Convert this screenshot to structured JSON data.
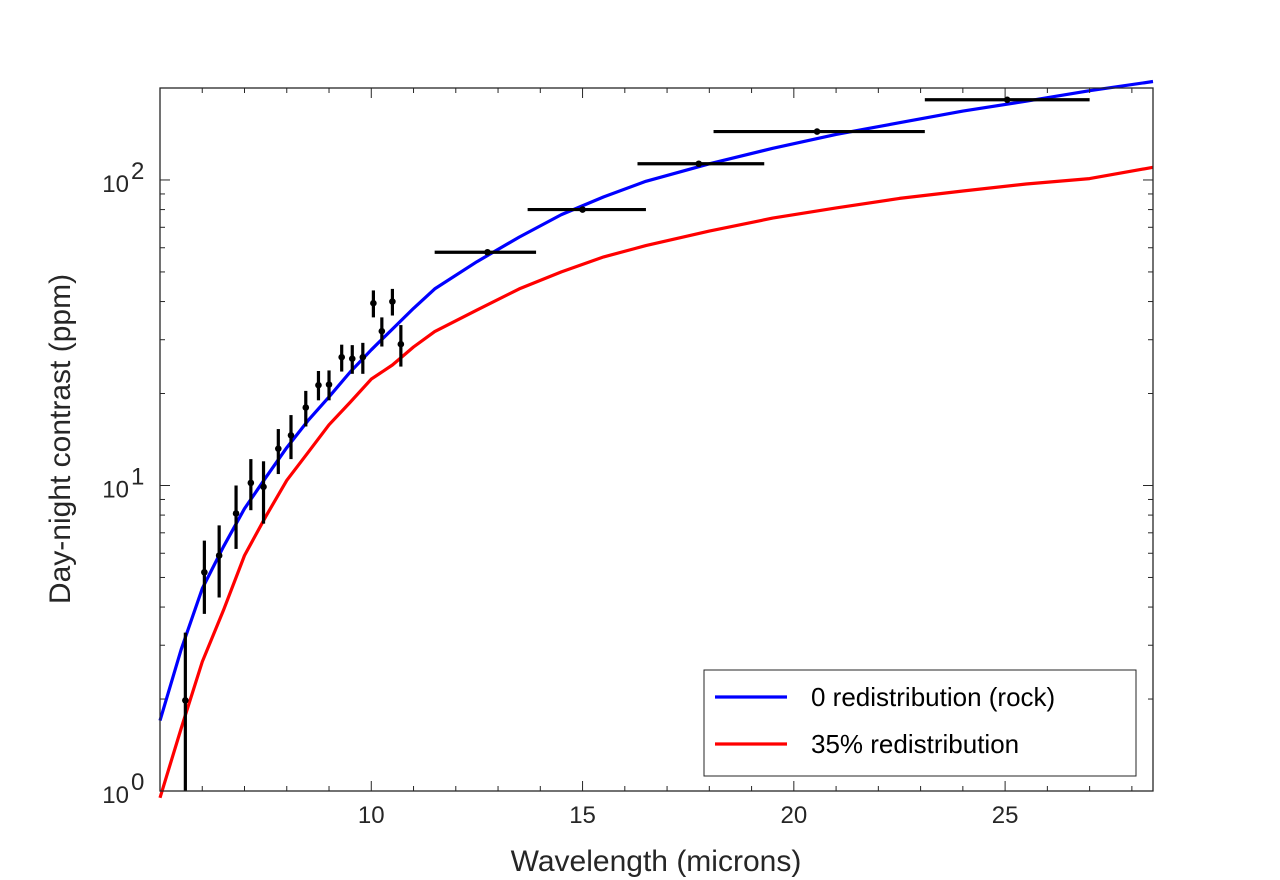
{
  "chart_data": {
    "type": "line",
    "title": "",
    "xlabel": "Wavelength (microns)",
    "ylabel": "Day-night contrast (ppm)",
    "xlim": [
      5,
      28.5
    ],
    "ylim": [
      1,
      200
    ],
    "yscale": "log",
    "grid": false,
    "legend_position": "bottom-right",
    "x_ticks": [
      {
        "value": 10,
        "label": "10"
      },
      {
        "value": 15,
        "label": "15"
      },
      {
        "value": 20,
        "label": "20"
      },
      {
        "value": 25,
        "label": "25"
      }
    ],
    "y_ticks": [
      {
        "value": 1,
        "base": "10",
        "exp": "0"
      },
      {
        "value": 10,
        "base": "10",
        "exp": "1"
      },
      {
        "value": 100,
        "base": "10",
        "exp": "2"
      }
    ],
    "series": [
      {
        "name": "0 redistribution (rock)",
        "color": "#0000ff",
        "x": [
          5.0,
          5.5,
          6.0,
          6.5,
          7.0,
          7.5,
          8.0,
          8.5,
          9.0,
          9.5,
          10.0,
          10.5,
          11.0,
          11.5,
          12.5,
          13.5,
          14.5,
          15.5,
          16.5,
          18.0,
          19.5,
          21.0,
          22.5,
          24.0,
          25.5,
          27.0,
          28.5
        ],
        "y": [
          1.7,
          2.9,
          4.6,
          6.3,
          8.4,
          10.6,
          13.3,
          16.3,
          19.5,
          23.5,
          27.8,
          32.5,
          38,
          44,
          54,
          65,
          77,
          88,
          99,
          113,
          127,
          141,
          154,
          168,
          181,
          196,
          210
        ]
      },
      {
        "name": "35% redistribution",
        "color": "#ff0000",
        "x": [
          5.0,
          5.5,
          6.0,
          6.5,
          7.0,
          7.5,
          8.0,
          8.5,
          9.0,
          9.5,
          10.0,
          10.5,
          11.0,
          11.5,
          12.5,
          13.5,
          14.5,
          15.5,
          16.5,
          18.0,
          19.5,
          21.0,
          22.5,
          24.0,
          25.5,
          27.0,
          28.5
        ],
        "y": [
          0.95,
          1.6,
          2.65,
          3.9,
          5.9,
          7.9,
          10.4,
          12.8,
          15.8,
          18.7,
          22.3,
          24.8,
          28.4,
          31.9,
          37.5,
          44,
          50,
          56,
          61,
          68,
          75,
          81,
          87,
          92,
          97,
          101,
          110
        ]
      }
    ],
    "observations": {
      "name": "data",
      "color": "#000000",
      "points": [
        {
          "x": 5.6,
          "y": 1.98,
          "y_lo": 1.0,
          "y_hi": 3.3
        },
        {
          "x": 6.05,
          "y": 5.2,
          "y_lo": 3.8,
          "y_hi": 6.6
        },
        {
          "x": 6.4,
          "y": 5.9,
          "y_lo": 4.3,
          "y_hi": 7.4
        },
        {
          "x": 6.8,
          "y": 8.1,
          "y_lo": 6.2,
          "y_hi": 10.0
        },
        {
          "x": 7.15,
          "y": 10.2,
          "y_lo": 8.3,
          "y_hi": 12.2
        },
        {
          "x": 7.45,
          "y": 9.9,
          "y_lo": 7.5,
          "y_hi": 12.0
        },
        {
          "x": 7.8,
          "y": 13.2,
          "y_lo": 10.9,
          "y_hi": 15.3
        },
        {
          "x": 8.1,
          "y": 14.6,
          "y_lo": 12.2,
          "y_hi": 17.0
        },
        {
          "x": 8.45,
          "y": 18.0,
          "y_lo": 15.6,
          "y_hi": 20.4
        },
        {
          "x": 8.75,
          "y": 21.3,
          "y_lo": 19.0,
          "y_hi": 23.7
        },
        {
          "x": 9.0,
          "y": 21.4,
          "y_lo": 19.0,
          "y_hi": 23.8
        },
        {
          "x": 9.3,
          "y": 26.3,
          "y_lo": 23.6,
          "y_hi": 28.9
        },
        {
          "x": 9.55,
          "y": 26.0,
          "y_lo": 23.2,
          "y_hi": 28.8
        },
        {
          "x": 9.8,
          "y": 26.3,
          "y_lo": 23.2,
          "y_hi": 29.3
        },
        {
          "x": 10.05,
          "y": 39.5,
          "y_lo": 35.5,
          "y_hi": 43.5
        },
        {
          "x": 10.25,
          "y": 32.0,
          "y_lo": 28.5,
          "y_hi": 35.5
        },
        {
          "x": 10.5,
          "y": 40.0,
          "y_lo": 36.0,
          "y_hi": 44.0
        },
        {
          "x": 10.7,
          "y": 29.0,
          "y_lo": 24.5,
          "y_hi": 33.5
        },
        {
          "x": 12.75,
          "y": 58,
          "x_lo": 11.5,
          "x_hi": 13.9
        },
        {
          "x": 15.0,
          "y": 80,
          "x_lo": 13.7,
          "x_hi": 16.5
        },
        {
          "x": 17.75,
          "y": 113,
          "x_lo": 16.3,
          "x_hi": 19.3
        },
        {
          "x": 20.55,
          "y": 144,
          "x_lo": 18.1,
          "x_hi": 23.1
        },
        {
          "x": 25.05,
          "y": 183,
          "x_lo": 23.1,
          "x_hi": 27.0
        }
      ]
    }
  }
}
